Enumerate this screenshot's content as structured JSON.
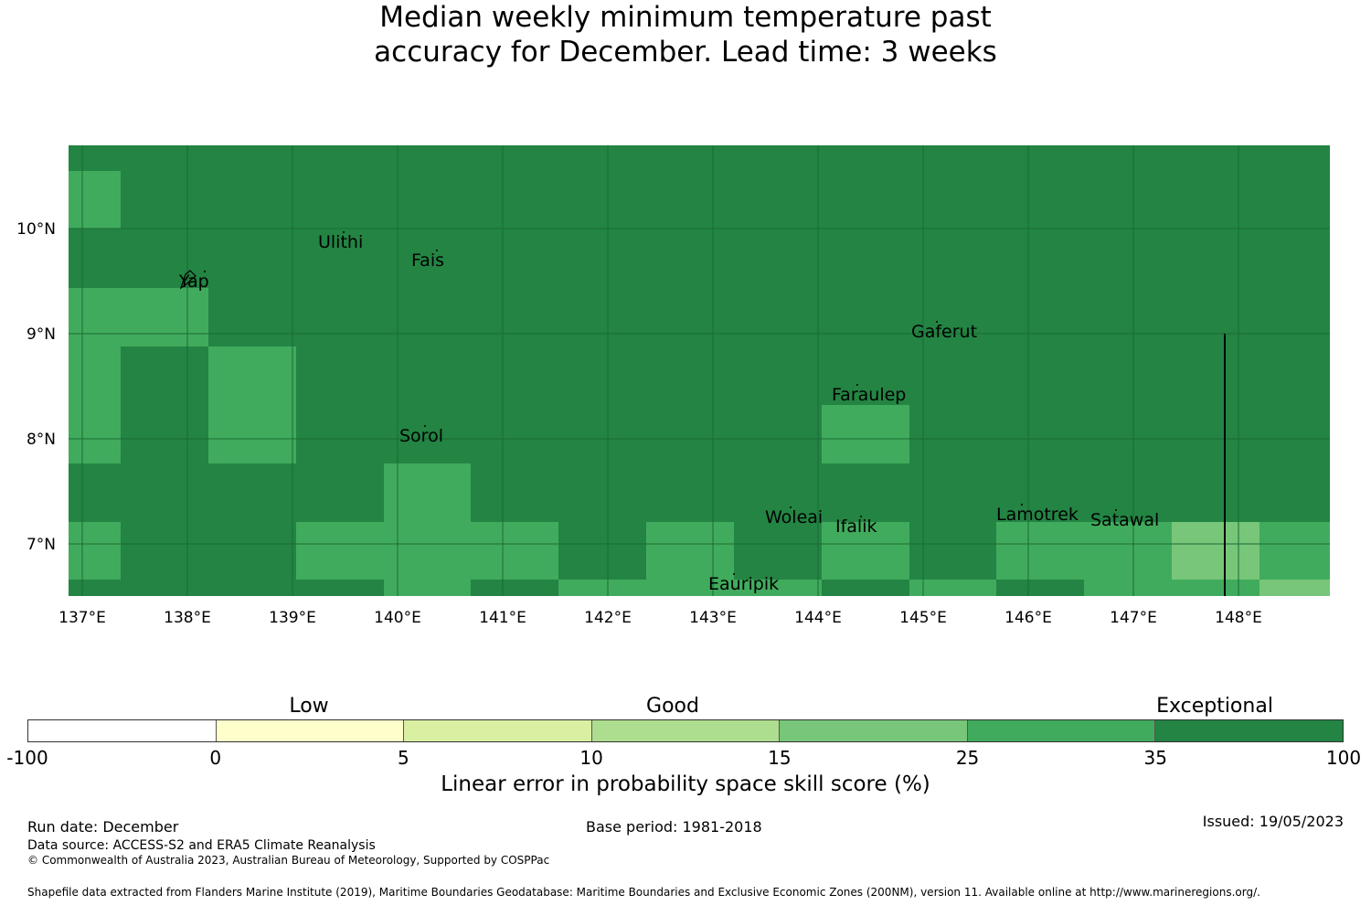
{
  "title": {
    "line1": "Median weekly minimum temperature past",
    "line2": "accuracy for December. Lead time: 3 weeks"
  },
  "map": {
    "x_ticks": [
      "137°E",
      "138°E",
      "139°E",
      "140°E",
      "141°E",
      "142°E",
      "143°E",
      "144°E",
      "145°E",
      "146°E",
      "147°E",
      "148°E"
    ],
    "y_ticks": [
      "10°N",
      "9°N",
      "8°N",
      "7°N"
    ],
    "places": [
      {
        "name": "Ulithi"
      },
      {
        "name": "Fais"
      },
      {
        "name": "Yap"
      },
      {
        "name": "Gaferut"
      },
      {
        "name": "Faraulep"
      },
      {
        "name": "Sorol"
      },
      {
        "name": "Woleai"
      },
      {
        "name": "Ifalik"
      },
      {
        "name": "Lamotrek"
      },
      {
        "name": "Satawal"
      },
      {
        "name": "Eauripik"
      }
    ],
    "colors": {
      "exceptional": "#238443",
      "band_25_35": "#41ab5d",
      "band_15_25": "#78c679",
      "grid": "#1a6b33"
    }
  },
  "legend": {
    "categories": [
      "Low",
      "Good",
      "Exceptional"
    ],
    "edges": [
      "-100",
      "0",
      "5",
      "10",
      "15",
      "25",
      "35",
      "100"
    ],
    "colors": [
      "#ffffff",
      "#ffffcc",
      "#d9f0a3",
      "#addd8e",
      "#78c679",
      "#41ab5d",
      "#238443"
    ],
    "title": "Linear error in probability space skill score (%)"
  },
  "footer": {
    "run_date": "Run date: December",
    "base_period": "Base period: 1981-2018",
    "issued": "Issued: 19/05/2023",
    "data_source": "Data source: ACCESS-S2 and ERA5 Climate Reanalysis",
    "copyright": "© Commonwealth of Australia 2023, Australian Bureau of Meteorology, Supported by COSPPac",
    "shapefile": "Shapefile data extracted from Flanders Marine Institute (2019), Maritime Boundaries Geodatabase: Maritime Boundaries and Exclusive Economic Zones (200NM), version 11. Available online at http://www.marineregions.org/."
  }
}
